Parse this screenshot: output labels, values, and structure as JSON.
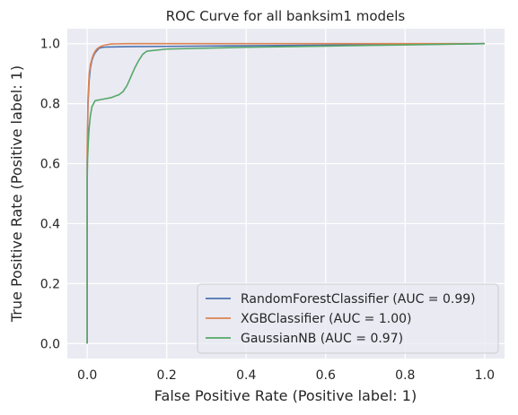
{
  "chart_data": {
    "type": "line",
    "title": "ROC Curve for all banksim1 models",
    "xlabel": "False Positive Rate (Positive label: 1)",
    "ylabel": "True Positive Rate (Positive label: 1)",
    "xlim": [
      -0.05,
      1.05
    ],
    "ylim": [
      -0.05,
      1.05
    ],
    "xticks": [
      0.0,
      0.2,
      0.4,
      0.6,
      0.8,
      1.0
    ],
    "yticks": [
      0.0,
      0.2,
      0.4,
      0.6,
      0.8,
      1.0
    ],
    "xtick_labels": [
      "0.0",
      "0.2",
      "0.4",
      "0.6",
      "0.8",
      "1.0"
    ],
    "ytick_labels": [
      "0.0",
      "0.2",
      "0.4",
      "0.6",
      "0.8",
      "1.0"
    ],
    "grid": true,
    "legend_position": "lower-right",
    "background": "#eaeaf2",
    "series": [
      {
        "name": "RandomForestClassifier (AUC = 0.99)",
        "color": "#4c72b0",
        "x": [
          0,
          0,
          0.002,
          0.005,
          0.008,
          0.012,
          0.016,
          0.02,
          0.025,
          0.03,
          0.04,
          0.05,
          0.1,
          0.2,
          0.4,
          0.6,
          0.8,
          1.0
        ],
        "y": [
          0,
          0.6,
          0.8,
          0.88,
          0.92,
          0.945,
          0.96,
          0.97,
          0.978,
          0.985,
          0.988,
          0.989,
          0.99,
          0.991,
          0.993,
          0.995,
          0.997,
          1.0
        ]
      },
      {
        "name": "XGBClassifier (AUC = 1.00)",
        "color": "#dd8452",
        "x": [
          0,
          0,
          0.002,
          0.005,
          0.008,
          0.012,
          0.016,
          0.02,
          0.025,
          0.03,
          0.04,
          0.05,
          0.06,
          0.1,
          0.2,
          0.4,
          0.6,
          0.8,
          1.0
        ],
        "y": [
          0,
          0.65,
          0.82,
          0.9,
          0.93,
          0.95,
          0.965,
          0.975,
          0.983,
          0.988,
          0.994,
          0.997,
          0.999,
          1.0,
          1.0,
          1.0,
          1.0,
          1.0,
          1.0
        ]
      },
      {
        "name": "GaussianNB (AUC = 0.97)",
        "color": "#55a868",
        "x": [
          0,
          0,
          0.001,
          0.003,
          0.005,
          0.008,
          0.012,
          0.02,
          0.04,
          0.06,
          0.07,
          0.08,
          0.09,
          0.1,
          0.11,
          0.12,
          0.13,
          0.14,
          0.15,
          0.2,
          0.3,
          0.4,
          0.6,
          0.8,
          1.0
        ],
        "y": [
          0,
          0.55,
          0.62,
          0.68,
          0.72,
          0.76,
          0.79,
          0.81,
          0.815,
          0.82,
          0.825,
          0.83,
          0.84,
          0.86,
          0.89,
          0.92,
          0.945,
          0.965,
          0.975,
          0.982,
          0.985,
          0.988,
          0.992,
          0.996,
          1.0
        ]
      }
    ]
  }
}
